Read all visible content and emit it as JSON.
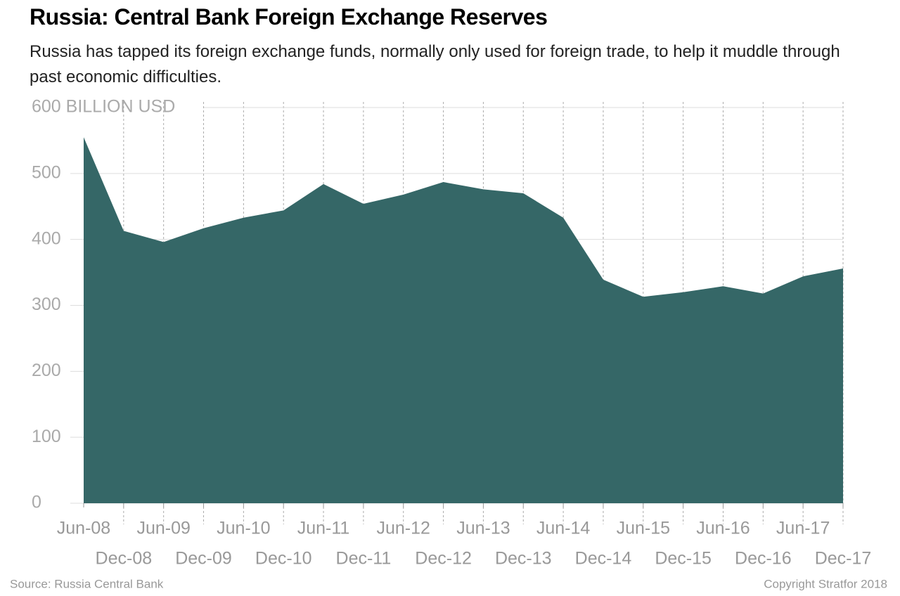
{
  "chart_data": {
    "type": "area",
    "title": "Russia: Central Bank Foreign Exchange Reserves",
    "subtitle": "Russia has tapped its foreign exchange funds, normally only used for foreign trade, to help it muddle through past economic difficulties.",
    "categories": [
      "Jun-08",
      "Dec-08",
      "Jun-09",
      "Dec-09",
      "Jun-10",
      "Dec-10",
      "Jun-11",
      "Dec-11",
      "Jun-12",
      "Dec-12",
      "Jun-13",
      "Dec-13",
      "Jun-14",
      "Dec-14",
      "Jun-15",
      "Dec-15",
      "Jun-16",
      "Dec-16",
      "Jun-17",
      "Dec-17"
    ],
    "values": [
      555,
      413,
      396,
      417,
      433,
      444,
      484,
      454,
      468,
      487,
      476,
      470,
      433,
      339,
      313,
      320,
      329,
      318,
      344,
      356
    ],
    "color": "#356767",
    "ylim": [
      0,
      600
    ],
    "yticks": [
      0,
      100,
      200,
      300,
      400,
      500,
      {
        "value": 600,
        "label": "600 BILLION USD"
      }
    ],
    "grid": true,
    "source": "Source: Russia Central Bank",
    "copyright": "Copyright Stratfor 2018"
  }
}
